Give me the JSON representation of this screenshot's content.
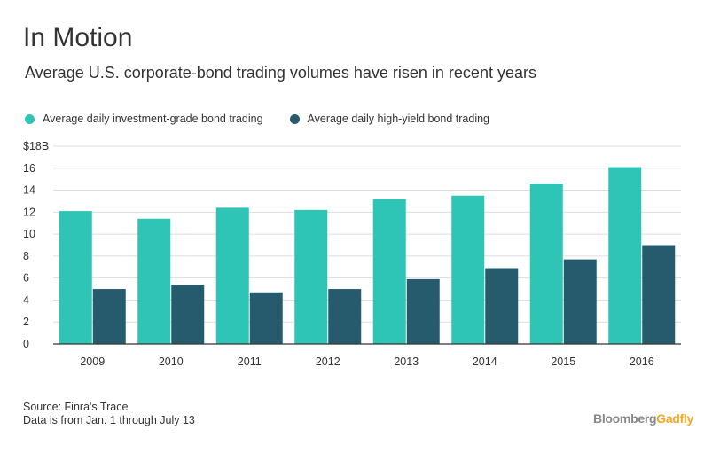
{
  "header": {
    "title": "In Motion",
    "subtitle": "Average U.S. corporate-bond trading volumes have risen in recent years"
  },
  "footer": {
    "source": "Source: Finra's Trace",
    "note": "Data is from Jan. 1 through July 13",
    "brand_part1": "Bloomberg",
    "brand_part2": "Gadfly"
  },
  "colors": {
    "investment_grade": "#2ec4b6",
    "high_yield": "#265b6e",
    "grid": "#dddddd",
    "axis": "#333333"
  },
  "chart_data": {
    "type": "bar",
    "categories": [
      "2009",
      "2010",
      "2011",
      "2012",
      "2013",
      "2014",
      "2015",
      "2016"
    ],
    "series": [
      {
        "name": "Average daily investment-grade bond trading",
        "values": [
          12.1,
          11.4,
          12.4,
          12.2,
          13.2,
          13.5,
          14.6,
          16.1
        ]
      },
      {
        "name": "Average daily high-yield bond trading",
        "values": [
          5.0,
          5.4,
          4.7,
          5.0,
          5.9,
          6.9,
          7.7,
          9.0
        ]
      }
    ],
    "yticks": [
      0,
      2,
      4,
      6,
      8,
      10,
      12,
      14,
      16,
      18
    ],
    "ytick_labels": [
      "0",
      "2",
      "4",
      "6",
      "8",
      "10",
      "12",
      "14",
      "16",
      "$18B"
    ],
    "ylim": [
      0,
      18
    ],
    "grid": true,
    "legend_position": "top-left"
  }
}
